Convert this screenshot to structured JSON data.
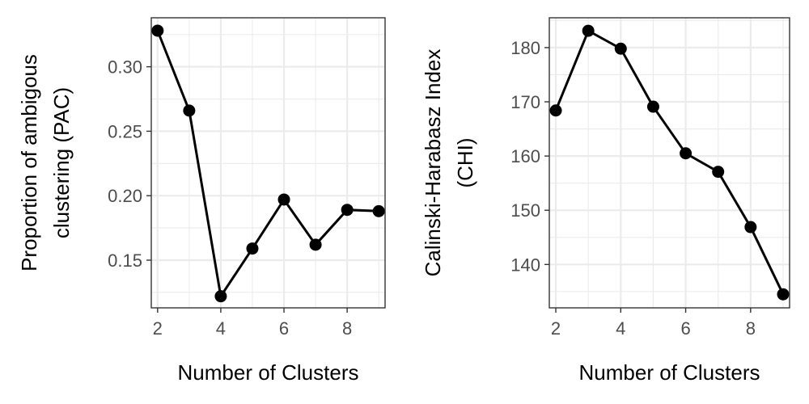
{
  "chart_data": [
    {
      "type": "line",
      "xlabel": "Number of Clusters",
      "ylabel_lines": [
        "Proportion of ambigous",
        "clustering (PAC)"
      ],
      "x": [
        2,
        3,
        4,
        5,
        6,
        7,
        8,
        9
      ],
      "values": [
        0.328,
        0.266,
        0.122,
        0.159,
        0.197,
        0.162,
        0.189,
        0.188
      ],
      "xlim": [
        1.8,
        9.2
      ],
      "ylim": [
        0.113,
        0.338
      ],
      "x_ticks": [
        2,
        4,
        6,
        8
      ],
      "x_tick_labels": [
        "2",
        "4",
        "6",
        "8"
      ],
      "y_ticks": [
        0.15,
        0.2,
        0.25,
        0.3
      ],
      "y_tick_labels": [
        "0.15",
        "0.20",
        "0.25",
        "0.30"
      ],
      "grid": true,
      "legend": "none",
      "colors": {
        "line": "#000000",
        "point": "#000000"
      }
    },
    {
      "type": "line",
      "xlabel": "Number of Clusters",
      "ylabel_lines": [
        "Calinski-Harabasz Index",
        "(CHI)"
      ],
      "x": [
        2,
        3,
        4,
        5,
        6,
        7,
        8,
        9
      ],
      "values": [
        168.4,
        183.1,
        179.8,
        169.1,
        160.5,
        157.1,
        146.9,
        134.5
      ],
      "xlim": [
        1.8,
        9.2
      ],
      "ylim": [
        132.0,
        185.5
      ],
      "x_ticks": [
        2,
        4,
        6,
        8
      ],
      "x_tick_labels": [
        "2",
        "4",
        "6",
        "8"
      ],
      "y_ticks": [
        140,
        150,
        160,
        170,
        180
      ],
      "y_tick_labels": [
        "140",
        "150",
        "160",
        "170",
        "180"
      ],
      "grid": true,
      "legend": "none",
      "colors": {
        "line": "#000000",
        "point": "#000000"
      }
    }
  ]
}
